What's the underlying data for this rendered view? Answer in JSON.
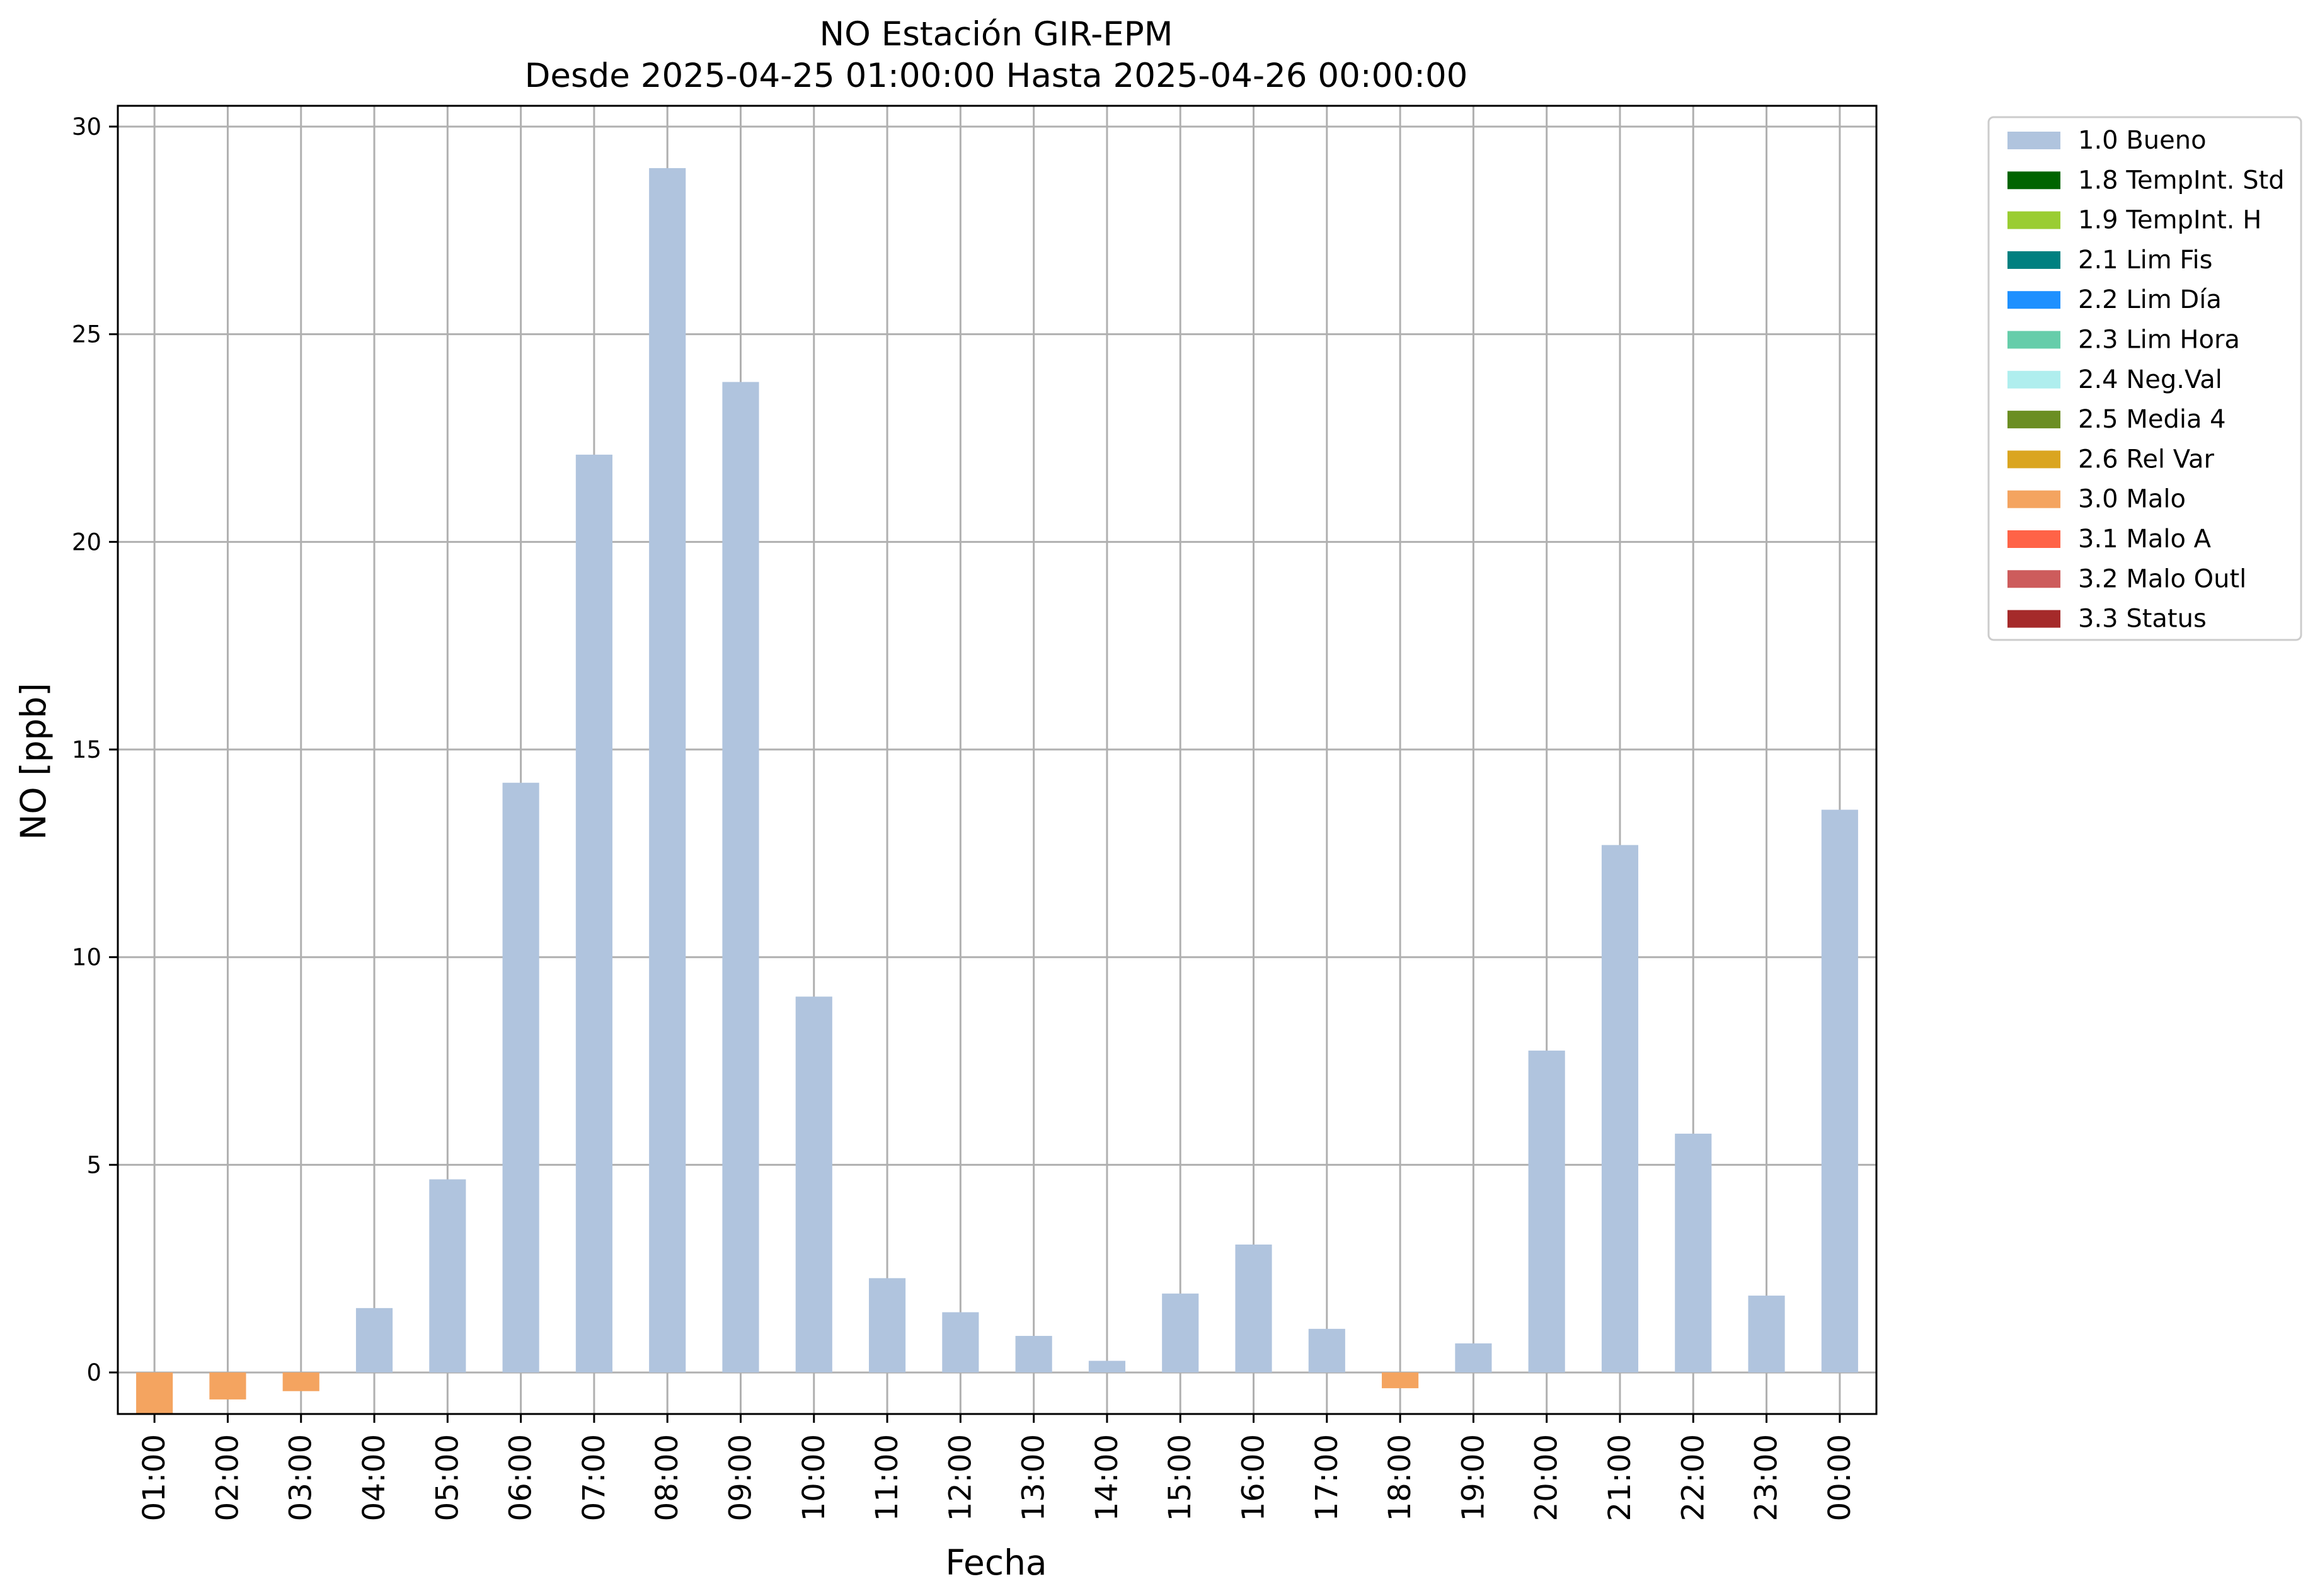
{
  "chart_data": {
    "type": "bar",
    "title": "NO Estación GIR-EPM",
    "subtitle": "Desde 2025-04-25 01:00:00 Hasta 2025-04-26 00:00:00",
    "xlabel": "Fecha",
    "ylabel": "NO [ppb]",
    "ylim": [
      -1.0,
      30.5
    ],
    "yticks": [
      0,
      5,
      10,
      15,
      20,
      25,
      30
    ],
    "grid": true,
    "legend_position": "outside-top-right",
    "categories": [
      "01:00",
      "02:00",
      "03:00",
      "04:00",
      "05:00",
      "06:00",
      "07:00",
      "08:00",
      "09:00",
      "10:00",
      "11:00",
      "12:00",
      "13:00",
      "14:00",
      "15:00",
      "16:00",
      "17:00",
      "18:00",
      "19:00",
      "20:00",
      "21:00",
      "22:00",
      "23:00",
      "00:00"
    ],
    "values": [
      -1.0,
      -0.65,
      -0.45,
      1.55,
      4.65,
      14.2,
      22.1,
      29.0,
      23.85,
      9.05,
      2.27,
      1.45,
      0.88,
      0.28,
      1.9,
      3.08,
      1.05,
      -0.38,
      0.7,
      7.75,
      12.7,
      5.75,
      1.85,
      13.55
    ],
    "flags": [
      "3.0 Malo",
      "3.0 Malo",
      "3.0 Malo",
      "1.0 Bueno",
      "1.0 Bueno",
      "1.0 Bueno",
      "1.0 Bueno",
      "1.0 Bueno",
      "1.0 Bueno",
      "1.0 Bueno",
      "1.0 Bueno",
      "1.0 Bueno",
      "1.0 Bueno",
      "1.0 Bueno",
      "1.0 Bueno",
      "1.0 Bueno",
      "1.0 Bueno",
      "3.0 Malo",
      "1.0 Bueno",
      "1.0 Bueno",
      "1.0 Bueno",
      "1.0 Bueno",
      "1.0 Bueno",
      "1.0 Bueno"
    ],
    "legend": [
      {
        "name": "1.0 Bueno",
        "color": "#b0c4de"
      },
      {
        "name": "1.8 TempInt. Std",
        "color": "#006400"
      },
      {
        "name": "1.9 TempInt. H",
        "color": "#9acd32"
      },
      {
        "name": "2.1 Lim Fis",
        "color": "#008080"
      },
      {
        "name": "2.2 Lim Día",
        "color": "#1e90ff"
      },
      {
        "name": "2.3 Lim Hora",
        "color": "#66cdaa"
      },
      {
        "name": "2.4 Neg.Val",
        "color": "#afeeee"
      },
      {
        "name": "2.5 Media 4",
        "color": "#6b8e23"
      },
      {
        "name": "2.6 Rel Var",
        "color": "#daa520"
      },
      {
        "name": "3.0 Malo",
        "color": "#f4a460"
      },
      {
        "name": "3.1 Malo A",
        "color": "#ff6347"
      },
      {
        "name": "3.2 Malo Outl",
        "color": "#cd5c5c"
      },
      {
        "name": "3.3 Status",
        "color": "#a52a2a"
      }
    ]
  }
}
